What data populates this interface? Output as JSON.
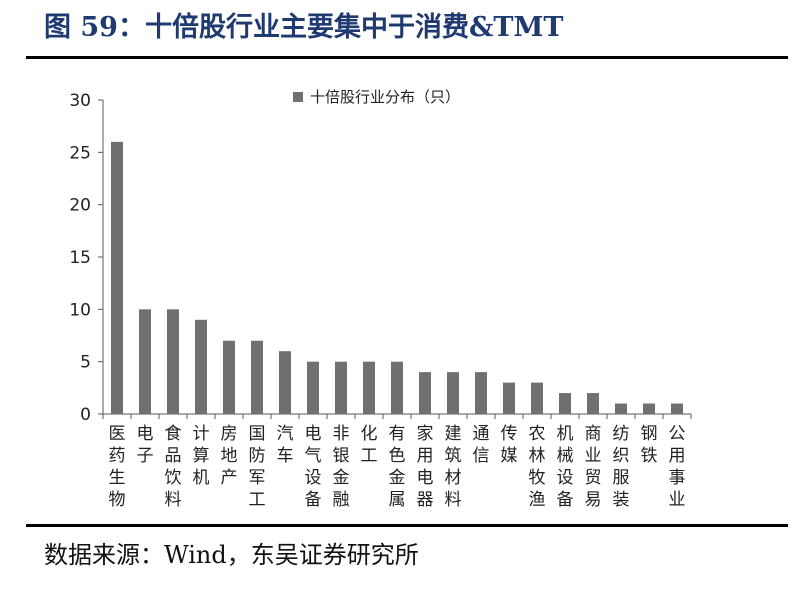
{
  "figure": {
    "title": "图 59：十倍股行业主要集中于消费&TMT",
    "source": "数据来源：Wind，东吴证券研究所"
  },
  "colors": {
    "title": "#1f3a70",
    "bar": "#707070",
    "axis": "#595959",
    "rule": "#000000"
  },
  "chart_data": {
    "type": "bar",
    "legend": "十倍股行业分布（只）",
    "legend_position": "top-center",
    "grid": false,
    "ylim": [
      0,
      30
    ],
    "y_ticks": [
      "0",
      "5",
      "10",
      "15",
      "20",
      "25",
      "30"
    ],
    "categories": [
      "医药生物",
      "电子",
      "食品饮料",
      "计算机",
      "房地产",
      "国防军工",
      "汽车",
      "电气设备",
      "非银金融",
      "化工",
      "有色金属",
      "家用电器",
      "建筑材料",
      "通信",
      "传媒",
      "农林牧渔",
      "机械设备",
      "商业贸易",
      "纺织服装",
      "钢铁",
      "公用事业"
    ],
    "series": [
      {
        "name": "十倍股行业分布（只）",
        "values": [
          26,
          10,
          10,
          9,
          7,
          7,
          6,
          5,
          5,
          5,
          5,
          4,
          4,
          4,
          3,
          3,
          2,
          2,
          1,
          1,
          1
        ]
      }
    ]
  }
}
